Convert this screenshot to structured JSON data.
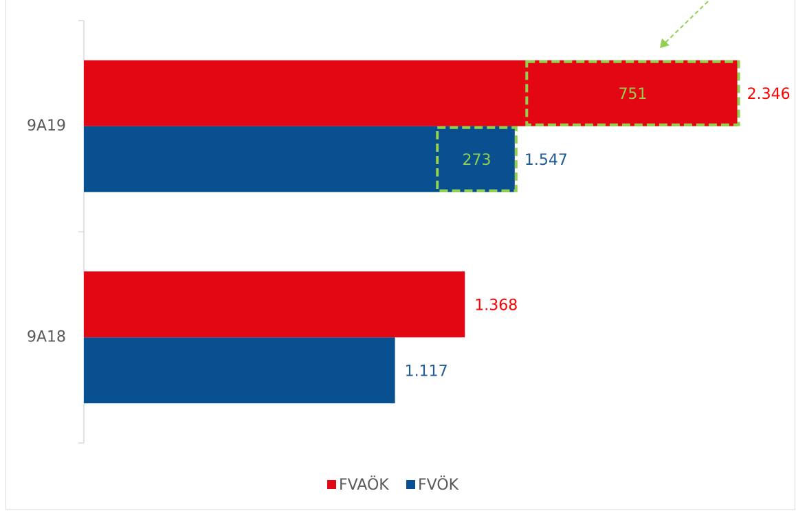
{
  "chart_data": {
    "type": "bar",
    "orientation": "horizontal",
    "categories": [
      "9A19",
      "9A18"
    ],
    "series": [
      {
        "name": "FVAÖK",
        "color": "#e30613",
        "label_color": "#ff0000",
        "values": [
          2346,
          1368
        ],
        "value_labels": [
          "2.346",
          "1.368"
        ],
        "increase": [
          751,
          null
        ]
      },
      {
        "name": "FVÖK",
        "color": "#08508f",
        "label_color": "#1f5a96",
        "values": [
          1547,
          1117
        ],
        "value_labels": [
          "1.547",
          "1.117"
        ],
        "increase": [
          273,
          null
        ]
      }
    ],
    "xlim": [
      0,
      2500
    ],
    "increase_color": "#92d050",
    "legend": "bottom"
  }
}
